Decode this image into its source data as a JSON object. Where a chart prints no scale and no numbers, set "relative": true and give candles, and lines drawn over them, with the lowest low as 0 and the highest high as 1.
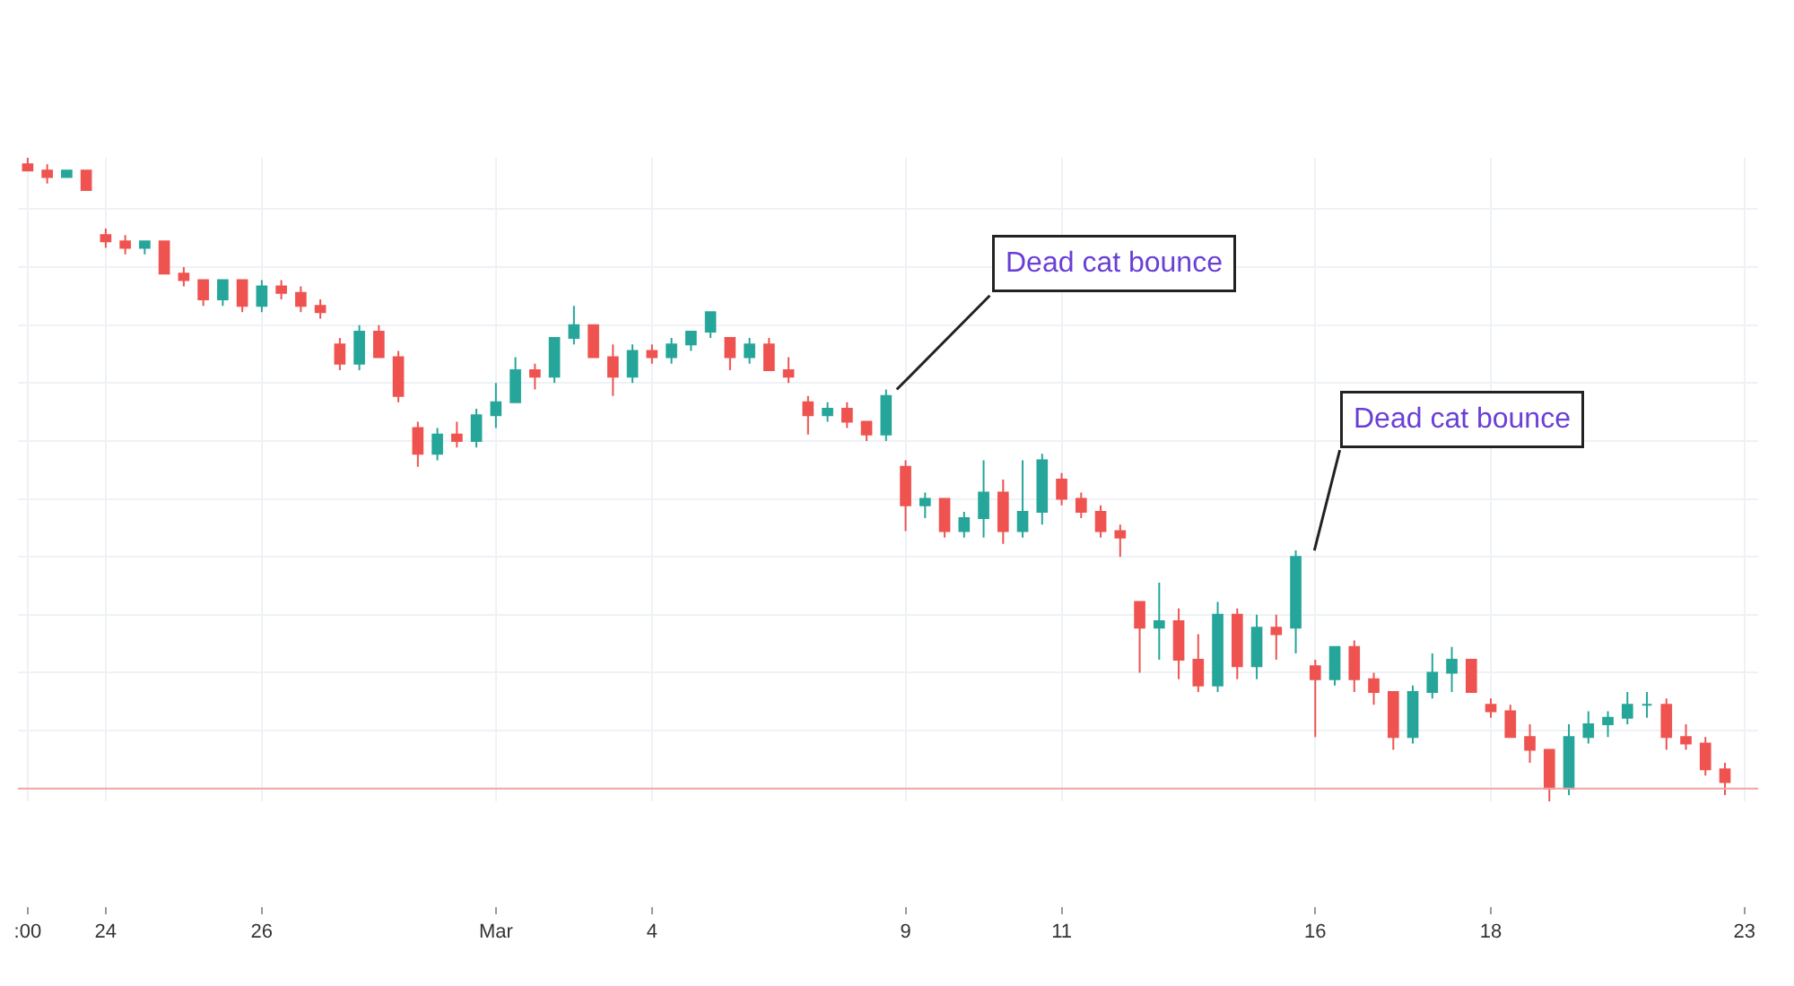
{
  "chart_data": {
    "type": "candlestick",
    "relative": true,
    "grid": true,
    "categories": [
      ":00",
      null,
      null,
      null,
      "24",
      null,
      null,
      null,
      null,
      null,
      null,
      null,
      "26",
      null,
      null,
      null,
      null,
      null,
      null,
      null,
      null,
      null,
      null,
      null,
      "Mar",
      null,
      null,
      null,
      null,
      null,
      null,
      null,
      "4",
      null,
      null,
      null,
      null,
      null,
      null,
      null,
      null,
      null,
      null,
      null,
      null,
      "9",
      null,
      null,
      null,
      null,
      null,
      null,
      null,
      "11",
      null,
      null,
      null,
      null,
      null,
      null,
      null,
      null,
      null,
      null,
      null,
      null,
      "16",
      null,
      null,
      null,
      null,
      null,
      null,
      null,
      null,
      "18",
      null,
      null,
      null,
      null,
      null,
      null,
      null,
      null,
      null,
      null,
      null,
      null,
      "23"
    ],
    "ohlc": [
      [
        0.99,
        1.0,
        0.98,
        0.98
      ],
      [
        0.98,
        0.99,
        0.96,
        0.97
      ],
      [
        0.97,
        0.98,
        0.97,
        0.98
      ],
      [
        0.98,
        0.98,
        0.95,
        0.95
      ],
      [
        0.88,
        0.89,
        0.86,
        0.87
      ],
      [
        0.87,
        0.88,
        0.85,
        0.86
      ],
      [
        0.86,
        0.87,
        0.85,
        0.87
      ],
      [
        0.87,
        0.87,
        0.82,
        0.82
      ],
      [
        0.82,
        0.83,
        0.8,
        0.81
      ],
      [
        0.81,
        0.81,
        0.77,
        0.78
      ],
      [
        0.78,
        0.81,
        0.77,
        0.81
      ],
      [
        0.81,
        0.81,
        0.76,
        0.77
      ],
      [
        0.77,
        0.81,
        0.76,
        0.8
      ],
      [
        0.8,
        0.81,
        0.78,
        0.79
      ],
      [
        0.79,
        0.8,
        0.76,
        0.77
      ],
      [
        0.77,
        0.78,
        0.75,
        0.76
      ],
      [
        0.71,
        0.72,
        0.67,
        0.68
      ],
      [
        0.68,
        0.74,
        0.67,
        0.73
      ],
      [
        0.73,
        0.74,
        0.69,
        0.69
      ],
      [
        0.69,
        0.7,
        0.62,
        0.63
      ],
      [
        0.58,
        0.59,
        0.52,
        0.54
      ],
      [
        0.54,
        0.58,
        0.53,
        0.57
      ],
      [
        0.57,
        0.59,
        0.55,
        0.56
      ],
      [
        0.56,
        0.61,
        0.55,
        0.6
      ],
      [
        0.6,
        0.65,
        0.58,
        0.62
      ],
      [
        0.62,
        0.69,
        0.62,
        0.67
      ],
      [
        0.67,
        0.68,
        0.64,
        0.66
      ],
      [
        0.66,
        0.72,
        0.65,
        0.72
      ],
      [
        0.72,
        0.77,
        0.71,
        0.74
      ],
      [
        0.74,
        0.74,
        0.69,
        0.69
      ],
      [
        0.69,
        0.71,
        0.63,
        0.66
      ],
      [
        0.66,
        0.71,
        0.65,
        0.7
      ],
      [
        0.7,
        0.71,
        0.68,
        0.69
      ],
      [
        0.69,
        0.72,
        0.68,
        0.71
      ],
      [
        0.71,
        0.73,
        0.7,
        0.73
      ],
      [
        0.73,
        0.76,
        0.72,
        0.76
      ],
      [
        0.72,
        0.72,
        0.67,
        0.69
      ],
      [
        0.69,
        0.72,
        0.68,
        0.71
      ],
      [
        0.71,
        0.72,
        0.67,
        0.67
      ],
      [
        0.67,
        0.69,
        0.65,
        0.66
      ],
      [
        0.62,
        0.63,
        0.57,
        0.6
      ],
      [
        0.6,
        0.62,
        0.59,
        0.61
      ],
      [
        0.61,
        0.62,
        0.58,
        0.59
      ],
      [
        0.59,
        0.59,
        0.56,
        0.57
      ],
      [
        0.57,
        0.64,
        0.56,
        0.63
      ],
      [
        0.52,
        0.53,
        0.42,
        0.46
      ],
      [
        0.46,
        0.48,
        0.44,
        0.47
      ],
      [
        0.47,
        0.47,
        0.41,
        0.42
      ],
      [
        0.42,
        0.45,
        0.41,
        0.44
      ],
      [
        0.44,
        0.53,
        0.41,
        0.48
      ],
      [
        0.48,
        0.5,
        0.4,
        0.42
      ],
      [
        0.42,
        0.53,
        0.41,
        0.45
      ],
      [
        0.45,
        0.54,
        0.43,
        0.53
      ],
      [
        0.5,
        0.51,
        0.46,
        0.47
      ],
      [
        0.47,
        0.48,
        0.44,
        0.45
      ],
      [
        0.45,
        0.46,
        0.41,
        0.42
      ],
      [
        0.42,
        0.43,
        0.38,
        0.41
      ],
      [
        0.31,
        0.31,
        0.2,
        0.27
      ],
      [
        0.27,
        0.34,
        0.22,
        0.28
      ],
      [
        0.28,
        0.3,
        0.19,
        0.22
      ],
      [
        0.22,
        0.26,
        0.17,
        0.18
      ],
      [
        0.18,
        0.31,
        0.17,
        0.29
      ],
      [
        0.29,
        0.3,
        0.19,
        0.21
      ],
      [
        0.21,
        0.29,
        0.19,
        0.27
      ],
      [
        0.27,
        0.29,
        0.22,
        0.26
      ],
      [
        0.27,
        0.39,
        0.23,
        0.38
      ],
      [
        0.21,
        0.22,
        0.1,
        0.19
      ],
      [
        0.19,
        0.24,
        0.18,
        0.24
      ],
      [
        0.24,
        0.25,
        0.17,
        0.19
      ],
      [
        0.19,
        0.2,
        0.15,
        0.17
      ],
      [
        0.17,
        0.17,
        0.08,
        0.1
      ],
      [
        0.1,
        0.18,
        0.09,
        0.17
      ],
      [
        0.17,
        0.23,
        0.16,
        0.2
      ],
      [
        0.2,
        0.24,
        0.17,
        0.22
      ],
      [
        0.22,
        0.22,
        0.17,
        0.17
      ],
      [
        0.15,
        0.16,
        0.13,
        0.14
      ],
      [
        0.14,
        0.15,
        0.1,
        0.1
      ],
      [
        0.1,
        0.12,
        0.06,
        0.08
      ],
      [
        0.08,
        0.08,
        0.0,
        0.02
      ],
      [
        0.02,
        0.12,
        0.01,
        0.1
      ],
      [
        0.1,
        0.14,
        0.09,
        0.12
      ],
      [
        0.12,
        0.14,
        0.1,
        0.13
      ],
      [
        0.13,
        0.17,
        0.12,
        0.15
      ],
      [
        0.15,
        0.17,
        0.13,
        0.15
      ],
      [
        0.15,
        0.16,
        0.08,
        0.1
      ],
      [
        0.1,
        0.12,
        0.08,
        0.09
      ],
      [
        0.09,
        0.1,
        0.04,
        0.05
      ],
      [
        0.05,
        0.06,
        0.01,
        0.03
      ],
      null
    ],
    "colors": [
      "#ef5350",
      "#ef5350",
      "#26a69a",
      "#ef5350",
      "#ef5350",
      "#ef5350",
      "#26a69a",
      "#ef5350",
      "#ef5350",
      "#ef5350",
      "#26a69a",
      "#ef5350",
      "#26a69a",
      "#ef5350",
      "#ef5350",
      "#ef5350",
      "#ef5350",
      "#26a69a",
      "#ef5350",
      "#ef5350",
      "#ef5350",
      "#26a69a",
      "#ef5350",
      "#26a69a",
      "#26a69a",
      "#26a69a",
      "#ef5350",
      "#26a69a",
      "#26a69a",
      "#ef5350",
      "#ef5350",
      "#26a69a",
      "#ef5350",
      "#26a69a",
      "#26a69a",
      "#26a69a",
      "#ef5350",
      "#26a69a",
      "#ef5350",
      "#ef5350",
      "#ef5350",
      "#26a69a",
      "#ef5350",
      "#ef5350",
      "#26a69a",
      "#ef5350",
      "#26a69a",
      "#ef5350",
      "#26a69a",
      "#26a69a",
      "#ef5350",
      "#26a69a",
      "#26a69a",
      "#ef5350",
      "#ef5350",
      "#ef5350",
      "#ef5350",
      "#ef5350",
      "#26a69a",
      "#ef5350",
      "#ef5350",
      "#26a69a",
      "#ef5350",
      "#26a69a",
      "#ef5350",
      "#26a69a",
      "#ef5350",
      "#26a69a",
      "#ef5350",
      "#ef5350",
      "#ef5350",
      "#26a69a",
      "#26a69a",
      "#26a69a",
      "#ef5350",
      "#ef5350",
      "#ef5350",
      "#ef5350",
      "#ef5350",
      "#26a69a",
      "#26a69a",
      "#26a69a",
      "#26a69a",
      "#26a69a",
      "#ef5350",
      "#ef5350",
      "#ef5350",
      "#ef5350",
      null
    ],
    "ref_lines": [
      {
        "axis": "y",
        "value": 0.02,
        "color": "#f4a3a3"
      }
    ],
    "annotations": [
      "Dead cat bounce",
      "Dead cat bounce"
    ]
  }
}
